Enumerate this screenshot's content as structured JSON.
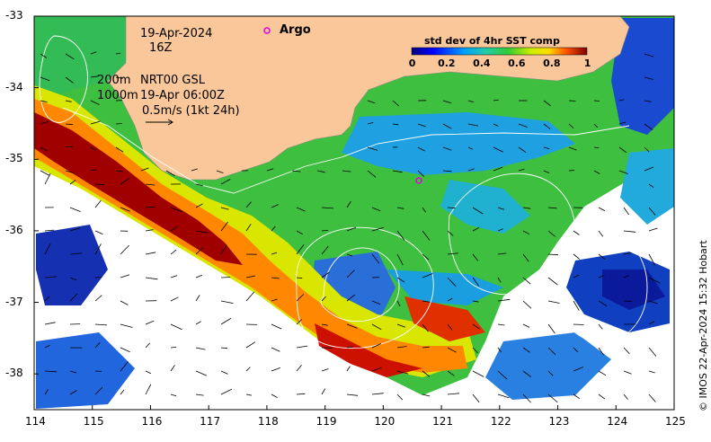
{
  "map": {
    "date": "19-Apr-2024",
    "hour": "16Z",
    "contour_label_200": "200m",
    "product": "NRT00 GSL",
    "contour_label_1000": "1000m",
    "altimetry_time": "19-Apr 06:00Z",
    "scale_label": "0.5m/s (1kt 24h)",
    "argo_label": "Argo",
    "colorbar_title": "std dev of 4hr SST comp",
    "colorbar_ticks": [
      "0",
      "0.2",
      "0.4",
      "0.6",
      "0.8",
      "1"
    ],
    "colorbar_range": [
      0,
      1
    ],
    "x_ticks": [
      "114",
      "115",
      "116",
      "117",
      "118",
      "119",
      "120",
      "121",
      "122",
      "123",
      "124",
      "125"
    ],
    "y_ticks": [
      "-33",
      "-34",
      "-35",
      "-36",
      "-37",
      "-38"
    ],
    "lon_range": [
      114,
      125
    ],
    "lat_range": [
      -38.5,
      -33
    ],
    "credit": "© IMOS 22-Apr-2024 15:32 Hobart",
    "colors": {
      "land": "#f9c79a",
      "ocean_cloud": "#ffffff",
      "argo_marker": "#e000e0"
    }
  }
}
